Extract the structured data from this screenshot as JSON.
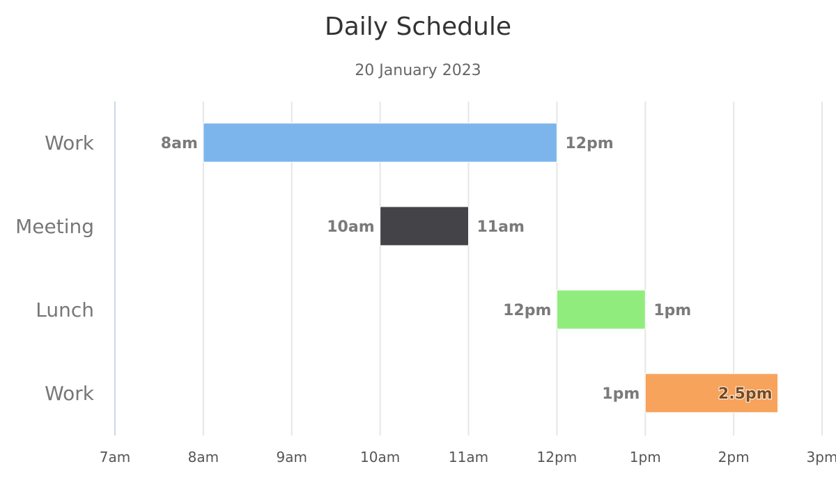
{
  "chart_data": {
    "type": "bar",
    "orientation": "horizontal-range",
    "title": "Daily Schedule",
    "subtitle": "20 January 2023",
    "categories": [
      "Work",
      "Meeting",
      "Lunch",
      "Work"
    ],
    "x_ticks": [
      {
        "value": 7,
        "label": "7am"
      },
      {
        "value": 8,
        "label": "8am"
      },
      {
        "value": 9,
        "label": "9am"
      },
      {
        "value": 10,
        "label": "10am"
      },
      {
        "value": 11,
        "label": "11am"
      },
      {
        "value": 12,
        "label": "12pm"
      },
      {
        "value": 13,
        "label": "1pm"
      },
      {
        "value": 14,
        "label": "2pm"
      },
      {
        "value": 15,
        "label": "3pm"
      }
    ],
    "xlim": [
      7,
      15
    ],
    "grid": true,
    "series": [
      {
        "values": [
          {
            "category": "Work",
            "low": 8,
            "high": 12,
            "low_label": "8am",
            "high_label": "12pm",
            "color": "#7cb5ec"
          },
          {
            "category": "Meeting",
            "low": 10,
            "high": 11,
            "low_label": "10am",
            "high_label": "11am",
            "color": "#434348"
          },
          {
            "category": "Lunch",
            "low": 12,
            "high": 13,
            "low_label": "12pm",
            "high_label": "1pm",
            "color": "#90ed7d"
          },
          {
            "category": "Work",
            "low": 13,
            "high": 14.5,
            "low_label": "1pm",
            "high_label": "2.5pm",
            "color": "#f7a35c"
          }
        ]
      }
    ]
  }
}
